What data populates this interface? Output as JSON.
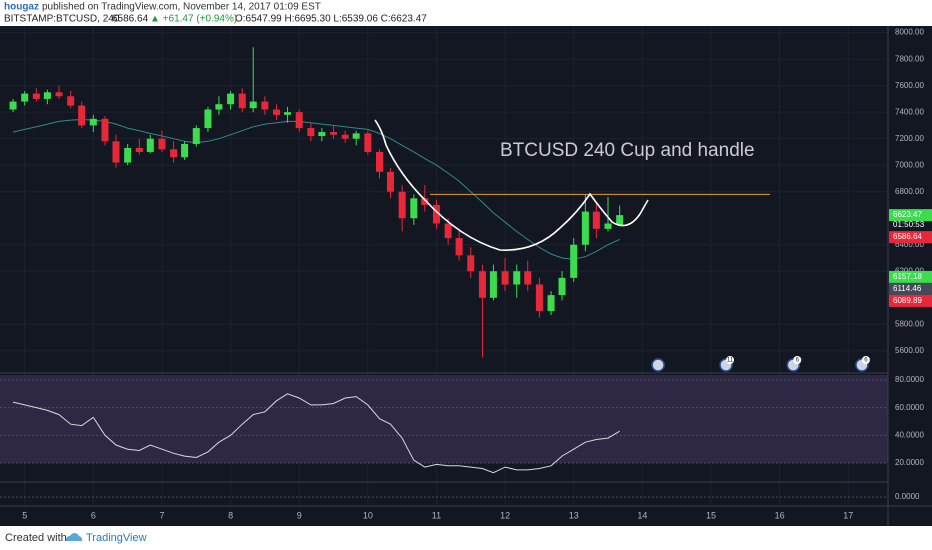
{
  "header": {
    "author": "hougaz",
    "published": "published on TradingView.com, November 14, 2017 01:09 EST",
    "symbol": "BITSTAMP:BTCUSD, 240",
    "last": "6586.64",
    "change": "▲ +61.47 (+0.94%)",
    "ohlc": "O:6547.99 H:6695.30 L:6539.06 C:6623.47"
  },
  "chart_data": [
    {
      "type": "candlestick",
      "annotation": "BTCUSD 240 Cup and handle",
      "x": [
        4.83,
        5,
        5.17,
        5.33,
        5.5,
        5.67,
        5.83,
        6,
        6.17,
        6.33,
        6.5,
        6.67,
        6.83,
        7,
        7.17,
        7.33,
        7.5,
        7.67,
        7.83,
        8,
        8.17,
        8.33,
        8.5,
        8.67,
        8.83,
        9,
        9.17,
        9.33,
        9.5,
        9.67,
        9.83,
        10,
        10.17,
        10.33,
        10.5,
        10.67,
        10.83,
        11,
        11.17,
        11.33,
        11.5,
        11.67,
        11.83,
        12,
        12.17,
        12.33,
        12.5,
        12.67,
        12.83,
        13,
        13.17,
        13.33,
        13.5,
        13.67
      ],
      "open": [
        7420,
        7480,
        7540,
        7500,
        7550,
        7520,
        7450,
        7300,
        7350,
        7180,
        7020,
        7130,
        7100,
        7200,
        7120,
        7060,
        7160,
        7280,
        7420,
        7460,
        7540,
        7430,
        7480,
        7420,
        7380,
        7400,
        7280,
        7220,
        7250,
        7230,
        7200,
        7240,
        7100,
        6950,
        6800,
        6600,
        6750,
        6700,
        6560,
        6450,
        6320,
        6200,
        6000,
        6200,
        6100,
        6200,
        6100,
        5900,
        6020,
        6150,
        6400,
        6650,
        6520,
        6547.99
      ],
      "high": [
        7500,
        7560,
        7580,
        7570,
        7600,
        7560,
        7480,
        7380,
        7370,
        7230,
        7160,
        7200,
        7230,
        7260,
        7180,
        7180,
        7300,
        7440,
        7520,
        7560,
        7580,
        7890,
        7520,
        7460,
        7440,
        7420,
        7320,
        7280,
        7300,
        7260,
        7260,
        7260,
        7120,
        6980,
        6850,
        6780,
        6850,
        6740,
        6600,
        6520,
        6380,
        6250,
        6250,
        6300,
        6250,
        6280,
        6150,
        6050,
        6200,
        6450,
        6780,
        6720,
        6760,
        6695.3
      ],
      "low": [
        7400,
        7450,
        7480,
        7460,
        7500,
        7430,
        7280,
        7250,
        7150,
        6980,
        7000,
        7080,
        7090,
        7100,
        7020,
        7040,
        7140,
        7250,
        7380,
        7420,
        7400,
        7400,
        7380,
        7340,
        7320,
        7250,
        7180,
        7180,
        7200,
        7170,
        7150,
        7080,
        6900,
        6750,
        6500,
        6550,
        6650,
        6520,
        6400,
        6280,
        6150,
        5550,
        5980,
        6050,
        6000,
        6050,
        5850,
        5870,
        5980,
        6120,
        6350,
        6450,
        6500,
        6539.06
      ],
      "close": [
        7480,
        7540,
        7500,
        7550,
        7520,
        7450,
        7300,
        7350,
        7180,
        7020,
        7130,
        7100,
        7200,
        7120,
        7060,
        7160,
        7280,
        7420,
        7460,
        7540,
        7430,
        7480,
        7420,
        7380,
        7400,
        7280,
        7220,
        7250,
        7230,
        7200,
        7240,
        7100,
        6950,
        6800,
        6600,
        6750,
        6700,
        6560,
        6450,
        6320,
        6200,
        6000,
        6200,
        6100,
        6200,
        6100,
        5900,
        6020,
        6150,
        6400,
        6650,
        6520,
        6560,
        6623.47
      ],
      "up_color": "#3ddc4f",
      "down_color": "#e8273a",
      "ma": {
        "color": "#2e8b8b",
        "values": [
          7250,
          7270,
          7290,
          7310,
          7330,
          7340,
          7345,
          7340,
          7330,
          7310,
          7280,
          7260,
          7240,
          7220,
          7200,
          7180,
          7170,
          7180,
          7200,
          7230,
          7260,
          7290,
          7310,
          7320,
          7330,
          7330,
          7320,
          7310,
          7300,
          7290,
          7280,
          7270,
          7240,
          7200,
          7150,
          7100,
          7050,
          7000,
          6940,
          6880,
          6800,
          6720,
          6640,
          6570,
          6500,
          6440,
          6380,
          6330,
          6300,
          6290,
          6310,
          6350,
          6400,
          6440
        ]
      },
      "hline": {
        "value": 6780,
        "color": "#e0a030"
      },
      "xlim": [
        4.64,
        17.58
      ],
      "xticks": [
        5,
        6,
        7,
        8,
        9,
        10,
        11,
        12,
        13,
        14,
        15,
        16,
        17
      ],
      "ylim": [
        5440,
        8050
      ],
      "yticks": [
        {
          "value": 5600,
          "label": "5600.00"
        },
        {
          "value": 5800,
          "label": "5800.00"
        },
        {
          "value": 6200,
          "label": "6200.00"
        },
        {
          "value": 6400,
          "label": "6400.00"
        },
        {
          "value": 6800,
          "label": "6800.00"
        },
        {
          "value": 7000,
          "label": "7000.00"
        },
        {
          "value": 7200,
          "label": "7200.00"
        },
        {
          "value": 7400,
          "label": "7400.00"
        },
        {
          "value": 7600,
          "label": "7600.00"
        },
        {
          "value": 7800,
          "label": "7800.00"
        },
        {
          "value": 8000,
          "label": "8000.00"
        }
      ],
      "price_labels": {
        "values": [
          6623.47,
          6586.64,
          6157.18,
          6114.46,
          6089.89
        ],
        "colors": [
          "#3ddc4f",
          "#e8273a",
          "#3ddc4f",
          "#444a58",
          "#e8273a"
        ]
      },
      "countdown": "01:50:53",
      "events": {
        "x": [
          14.23,
          15.22,
          16.2,
          17.2
        ],
        "labels": [
          null,
          "11",
          "6",
          "6"
        ]
      }
    },
    {
      "type": "line",
      "color": "#d8d8e0",
      "fill": "#2f2845",
      "values": [
        64,
        62,
        60,
        58,
        55,
        48,
        47,
        53,
        40,
        33,
        30,
        29,
        33,
        30,
        27,
        25,
        24,
        28,
        35,
        40,
        48,
        55,
        57,
        65,
        70,
        67,
        62,
        62,
        63,
        67,
        68,
        62,
        52,
        48,
        38,
        22,
        17,
        19,
        18,
        18,
        17,
        16,
        13,
        17,
        15,
        15,
        16,
        18,
        25,
        30,
        35,
        37,
        38,
        43
      ],
      "ylim": [
        7.7,
        83.6
      ],
      "yticks": [
        {
          "value": 20,
          "label": "20.0000"
        },
        {
          "value": 40,
          "label": "40.0000"
        },
        {
          "value": 60,
          "label": "60.0000"
        },
        {
          "value": 80,
          "label": "80.0000"
        }
      ]
    },
    {
      "type": "axis",
      "ylim": [
        -0.36,
        0.64
      ],
      "yticks": [
        {
          "value": 0,
          "label": "0.0000"
        }
      ]
    }
  ],
  "footer": {
    "created": "Created with",
    "brand": "TradingView"
  }
}
